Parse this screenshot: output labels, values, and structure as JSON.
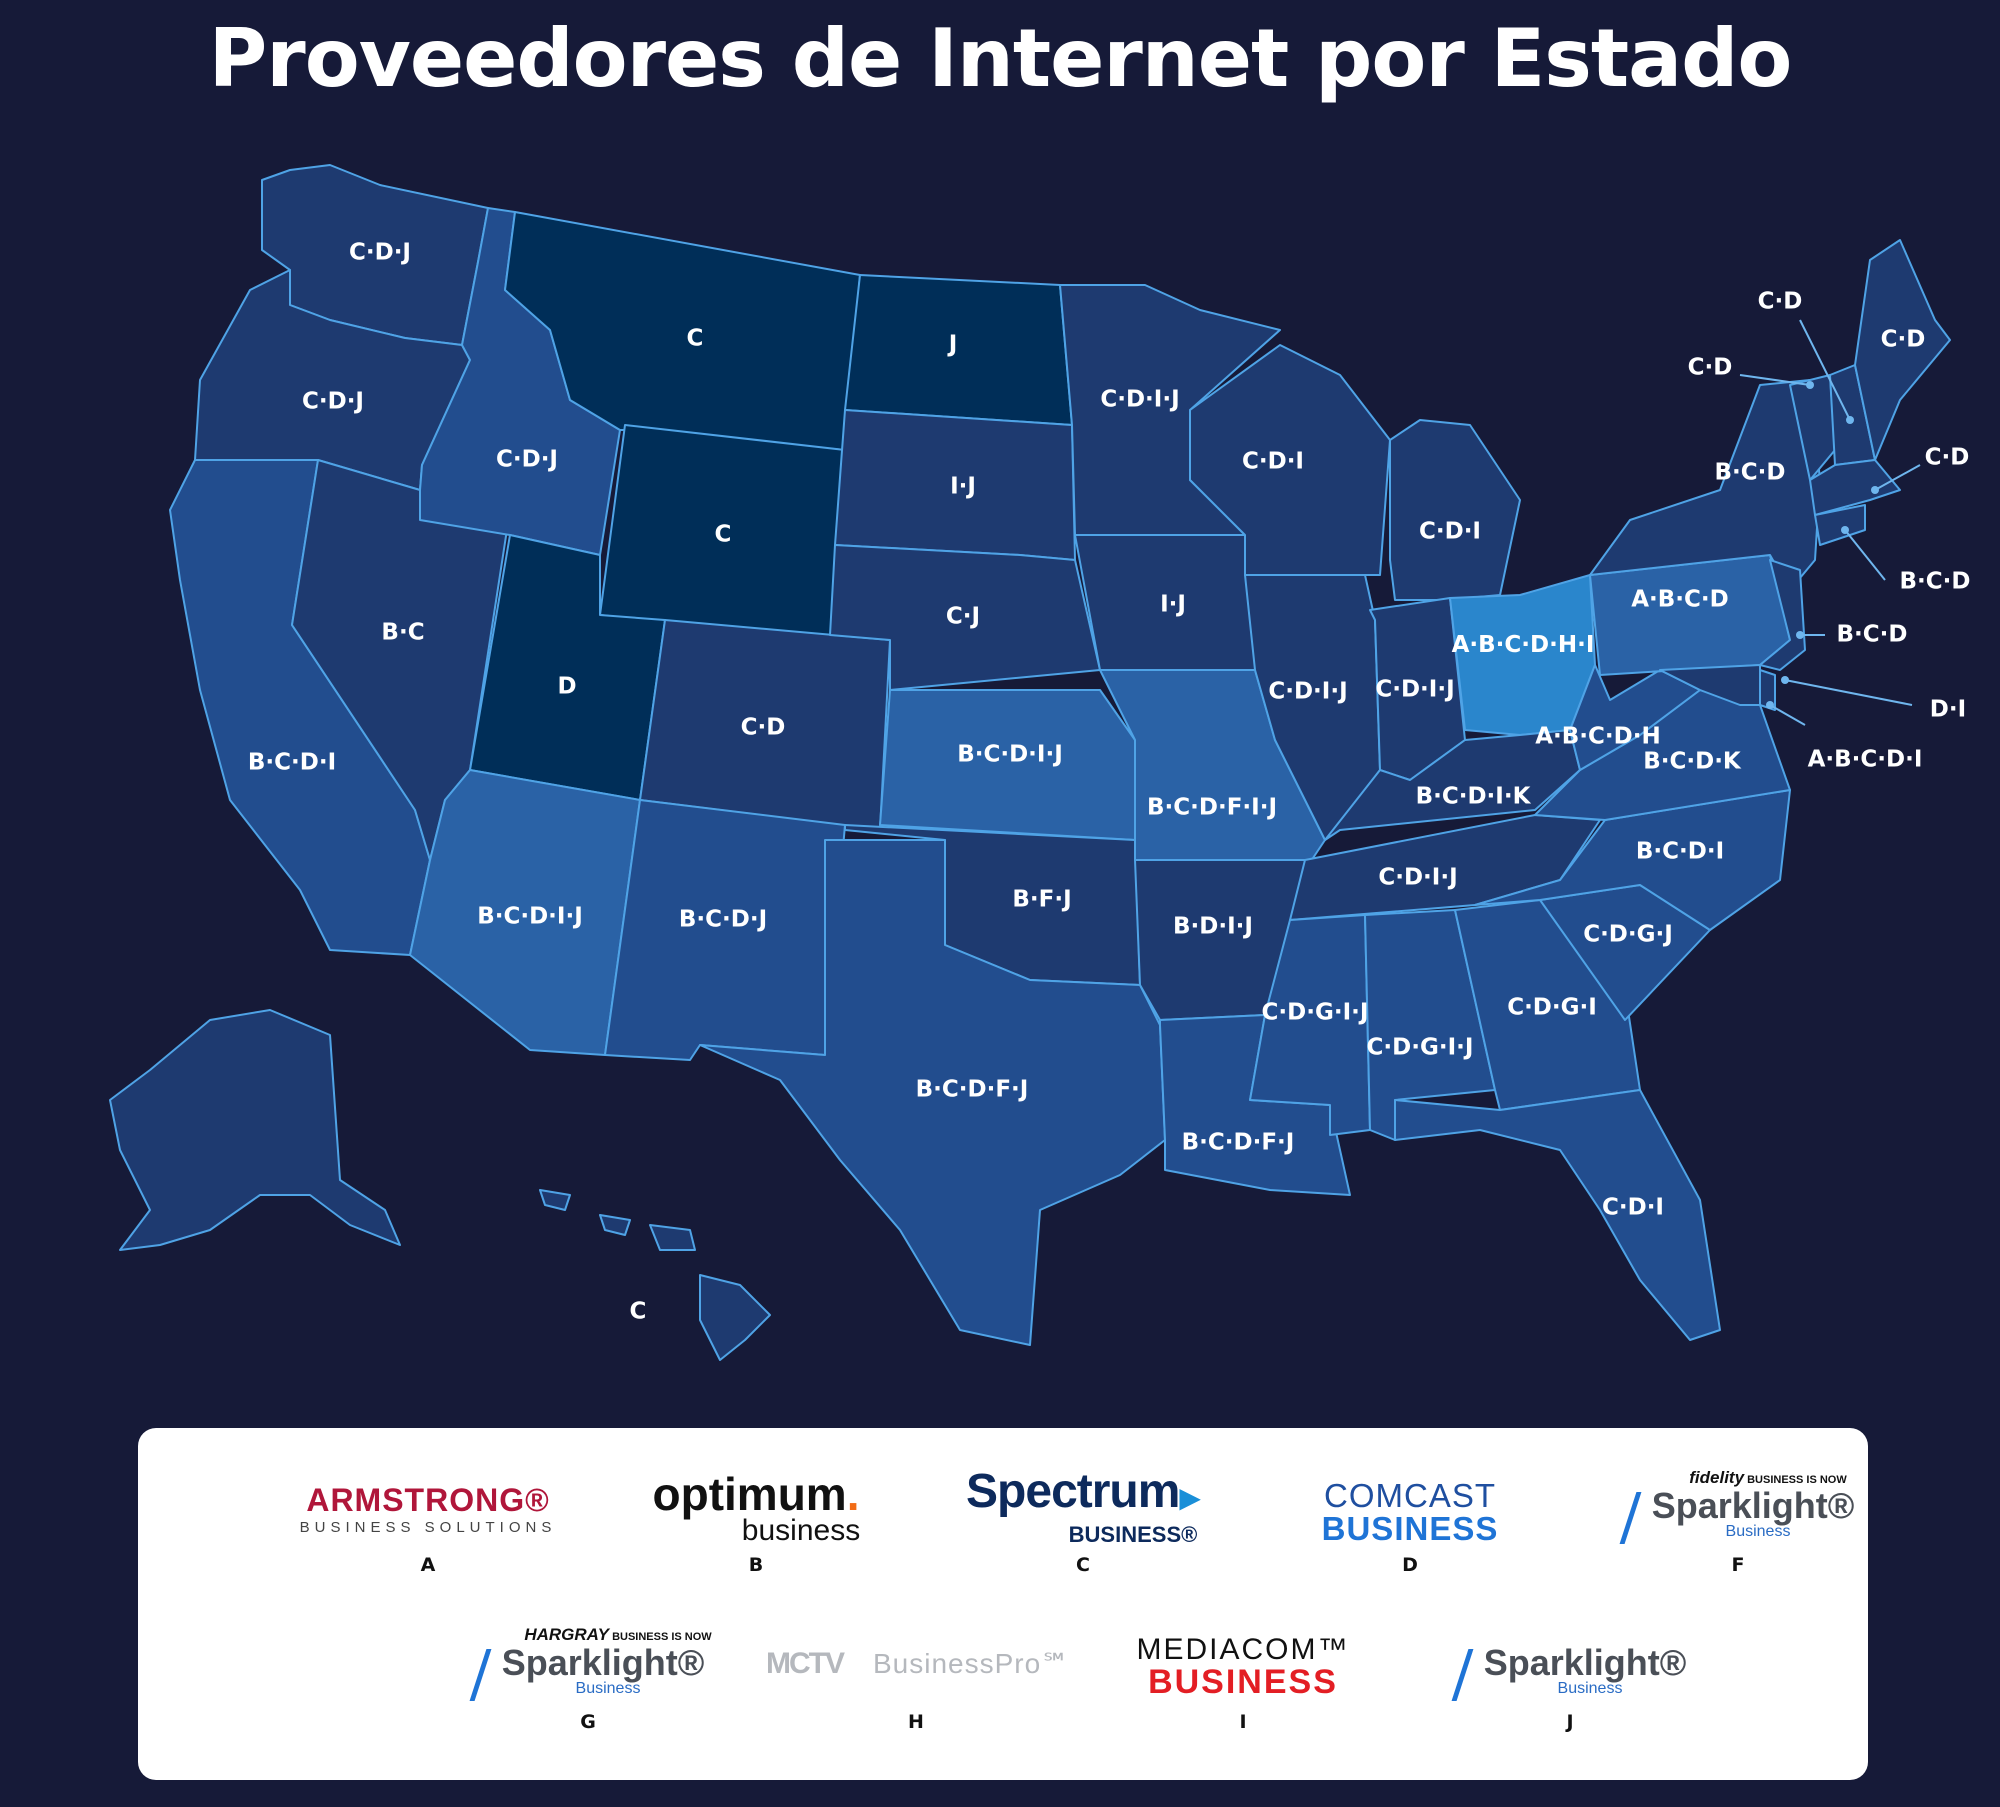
{
  "title": "Proveedores de Internet por Estado",
  "states": [
    {
      "name": "washington",
      "providers": "C·D·J"
    },
    {
      "name": "oregon",
      "providers": "C·D·J"
    },
    {
      "name": "california",
      "providers": "B·C·D·I"
    },
    {
      "name": "nevada",
      "providers": "B·C"
    },
    {
      "name": "idaho",
      "providers": "C·D·J"
    },
    {
      "name": "montana",
      "providers": "C"
    },
    {
      "name": "wyoming",
      "providers": "C"
    },
    {
      "name": "utah",
      "providers": "D"
    },
    {
      "name": "arizona",
      "providers": "B·C·D·I·J"
    },
    {
      "name": "colorado",
      "providers": "C·D"
    },
    {
      "name": "new-mexico",
      "providers": "B·C·D·J"
    },
    {
      "name": "north-dakota",
      "providers": "J"
    },
    {
      "name": "south-dakota",
      "providers": "I·J"
    },
    {
      "name": "nebraska",
      "providers": "C·J"
    },
    {
      "name": "kansas",
      "providers": "B·C·D·I·J"
    },
    {
      "name": "oklahoma",
      "providers": "B·F·J"
    },
    {
      "name": "texas",
      "providers": "B·C·D·F·J"
    },
    {
      "name": "minnesota",
      "providers": "C·D·I·J"
    },
    {
      "name": "iowa",
      "providers": "I·J"
    },
    {
      "name": "missouri",
      "providers": "B·C·D·F·I·J"
    },
    {
      "name": "arkansas",
      "providers": "B·D·I·J"
    },
    {
      "name": "louisiana",
      "providers": "B·C·D·F·J"
    },
    {
      "name": "wisconsin",
      "providers": "C·D·I"
    },
    {
      "name": "illinois",
      "providers": "C·D·I·J"
    },
    {
      "name": "michigan",
      "providers": "C·D·I"
    },
    {
      "name": "indiana",
      "providers": "C·D·I·J"
    },
    {
      "name": "ohio",
      "providers": "A·B·C·D·H·I"
    },
    {
      "name": "kentucky",
      "providers": "B·C·D·I·K"
    },
    {
      "name": "tennessee",
      "providers": "C·D·I·J"
    },
    {
      "name": "mississippi",
      "providers": "C·D·G·I·J"
    },
    {
      "name": "alabama",
      "providers": "C·D·G·I·J"
    },
    {
      "name": "georgia",
      "providers": "C·D·G·I"
    },
    {
      "name": "florida",
      "providers": "C·D·I"
    },
    {
      "name": "south-carolina",
      "providers": "C·D·G·J"
    },
    {
      "name": "north-carolina",
      "providers": "B·C·D·I"
    },
    {
      "name": "virginia",
      "providers": "B·C·D·K"
    },
    {
      "name": "west-virginia",
      "providers": "A·B·C·D·H"
    },
    {
      "name": "pennsylvania",
      "providers": "A·B·C·D"
    },
    {
      "name": "new-york",
      "providers": "B·C·D"
    },
    {
      "name": "maine",
      "providers": "C·D"
    },
    {
      "name": "vermont",
      "providers": "C·D"
    },
    {
      "name": "new-hampshire",
      "providers": "C·D"
    },
    {
      "name": "massachusetts",
      "providers": "C·D"
    },
    {
      "name": "connecticut",
      "providers": "B·C·D"
    },
    {
      "name": "new-jersey",
      "providers": "B·C·D"
    },
    {
      "name": "delaware",
      "providers": "D·I"
    },
    {
      "name": "maryland",
      "providers": "A·B·C·D·I"
    },
    {
      "name": "hawaii",
      "providers": "C"
    }
  ],
  "colors": {
    "background": "#161a38",
    "state_border": "#4fa3e6",
    "fill_darkest": "#002e58",
    "fill_dark": "#1e3a70",
    "fill_mid": "#224d8e",
    "fill_light": "#2a62a6",
    "fill_brightest": "#2a86cc"
  },
  "legend": [
    {
      "letter": "A",
      "brand_line1": "ARMSTRONG®",
      "brand_line2": "BUSINESS SOLUTIONS"
    },
    {
      "letter": "B",
      "brand_line1": "optimum",
      "brand_line2": "business"
    },
    {
      "letter": "C",
      "brand_line1": "Spectrum",
      "brand_line2": "BUSINESS®"
    },
    {
      "letter": "D",
      "brand_line1": "COMCAST",
      "brand_line2": "BUSINESS"
    },
    {
      "letter": "F",
      "brand_top": "fidelity",
      "brand_top_note": "BUSINESS IS NOW",
      "brand_line1": "Sparklight®",
      "brand_line2": "Business"
    },
    {
      "letter": "G",
      "brand_top": "HARGRAY",
      "brand_top_note": "BUSINESS IS NOW",
      "brand_line1": "Sparklight®",
      "brand_line2": "Business"
    },
    {
      "letter": "H",
      "brand_line1": "MCTV",
      "brand_line2": "BusinessPro℠"
    },
    {
      "letter": "I",
      "brand_line1": "MEDIACOM™",
      "brand_line2": "BUSINESS"
    },
    {
      "letter": "J",
      "brand_line1": "Sparklight®",
      "brand_line2": "Business"
    }
  ]
}
